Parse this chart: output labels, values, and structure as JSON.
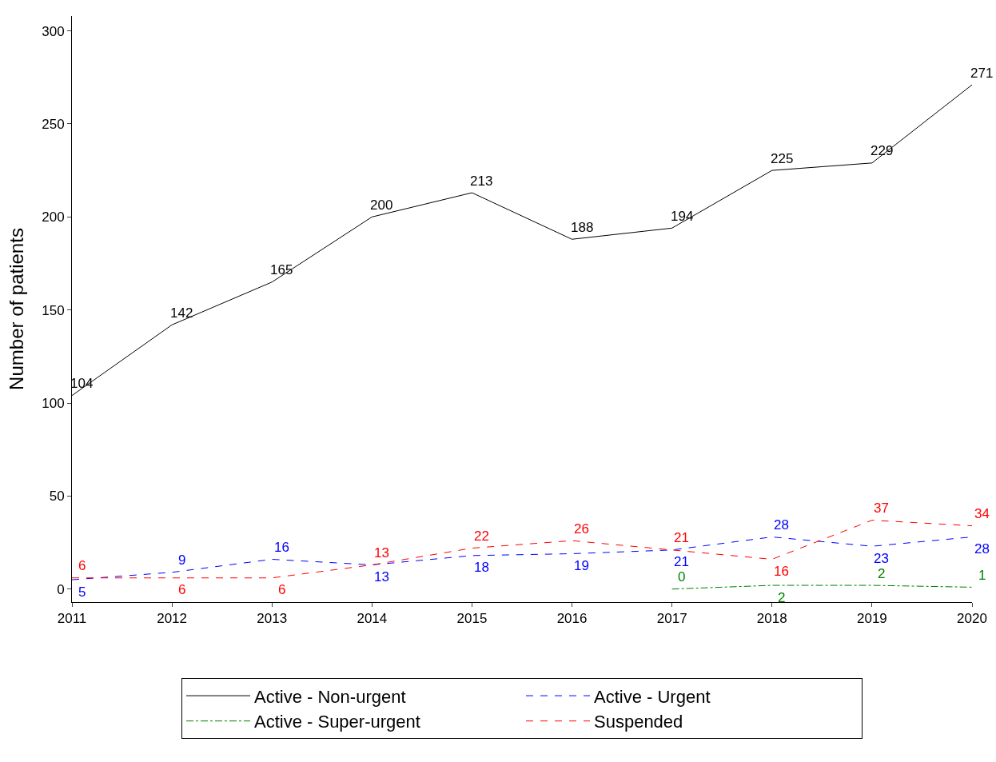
{
  "chart_data": {
    "type": "line",
    "ylabel": "Number of patients",
    "x": [
      2011,
      2012,
      2013,
      2014,
      2015,
      2016,
      2017,
      2018,
      2019,
      2020
    ],
    "series": [
      {
        "name": "Active - Non-urgent",
        "color": "#000000",
        "line_style": "solid",
        "values": [
          104,
          142,
          165,
          200,
          213,
          188,
          194,
          225,
          229,
          271
        ]
      },
      {
        "name": "Active - Urgent",
        "color": "#0000ff",
        "line_style": "dashed",
        "values": [
          5,
          9,
          16,
          13,
          18,
          19,
          21,
          28,
          23,
          28
        ]
      },
      {
        "name": "Active - Super-urgent",
        "color": "#008000",
        "line_style": "dashdot",
        "values": [
          null,
          null,
          null,
          null,
          null,
          null,
          0,
          2,
          2,
          1
        ]
      },
      {
        "name": "Suspended",
        "color": "#ff0000",
        "line_style": "dashed",
        "values": [
          6,
          6,
          6,
          13,
          22,
          26,
          21,
          16,
          37,
          34
        ]
      }
    ],
    "xlim": [
      2011,
      2020
    ],
    "xticks": [
      2011,
      2012,
      2013,
      2014,
      2015,
      2016,
      2017,
      2018,
      2019,
      2020
    ],
    "ylim": [
      -7,
      308
    ],
    "yticks": [
      0,
      50,
      100,
      150,
      200,
      250,
      300
    ],
    "data_labels": true,
    "legend": "bottom",
    "marker": "none"
  }
}
